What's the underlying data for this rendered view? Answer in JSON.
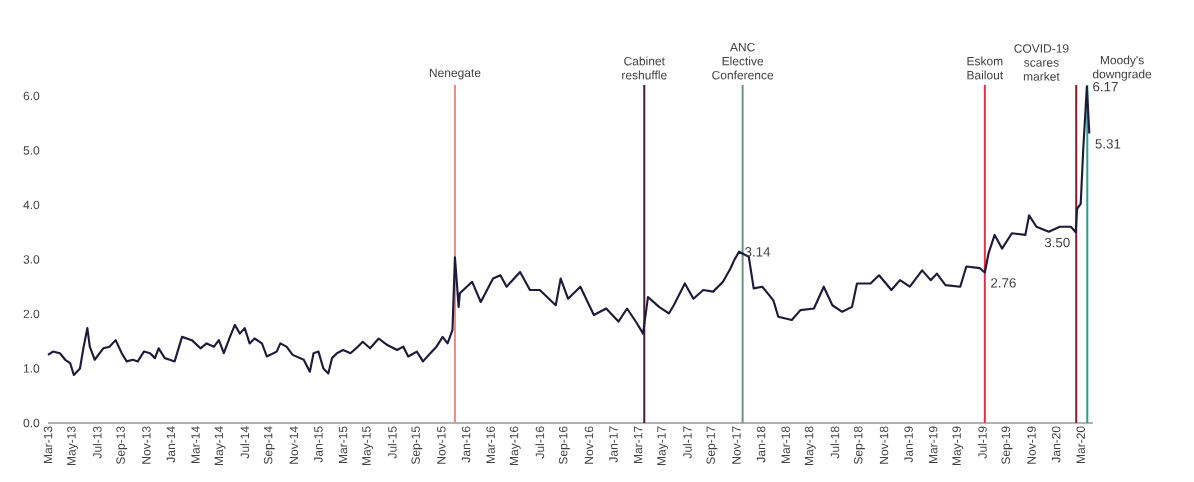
{
  "chart_data": {
    "type": "line",
    "x": [
      "2013-03-01",
      "2013-03-13",
      "2013-03-30",
      "2013-04-13",
      "2013-04-25",
      "2013-05-04",
      "2013-05-19",
      "2013-05-28",
      "2013-06-07",
      "2013-06-13",
      "2013-06-25",
      "2013-07-07",
      "2013-07-16",
      "2013-08-01",
      "2013-08-16",
      "2013-09-01",
      "2013-09-13",
      "2013-09-28",
      "2013-10-10",
      "2013-10-25",
      "2013-11-10",
      "2013-11-22",
      "2013-12-01",
      "2013-12-16",
      "2013-12-28",
      "2014-01-10",
      "2014-01-28",
      "2014-02-22",
      "2014-03-13",
      "2014-03-28",
      "2014-04-16",
      "2014-04-28",
      "2014-05-10",
      "2014-05-25",
      "2014-06-07",
      "2014-06-19",
      "2014-07-01",
      "2014-07-13",
      "2014-07-25",
      "2014-08-13",
      "2014-08-25",
      "2014-09-19",
      "2014-09-28",
      "2014-10-13",
      "2014-10-28",
      "2014-11-25",
      "2014-12-10",
      "2014-12-19",
      "2015-01-01",
      "2015-01-13",
      "2015-01-25",
      "2015-02-04",
      "2015-02-16",
      "2015-03-01",
      "2015-03-19",
      "2015-04-07",
      "2015-04-19",
      "2015-05-07",
      "2015-05-28",
      "2015-06-19",
      "2015-07-13",
      "2015-07-28",
      "2015-08-10",
      "2015-09-01",
      "2015-09-16",
      "2015-10-04",
      "2015-10-19",
      "2015-11-04",
      "2015-11-16",
      "2015-11-28",
      "2015-12-04",
      "2015-12-13",
      "2015-12-16",
      "2016-01-16",
      "2016-02-07",
      "2016-03-07",
      "2016-03-25",
      "2016-04-10",
      "2016-05-13",
      "2016-06-07",
      "2016-07-01",
      "2016-08-10",
      "2016-08-22",
      "2016-09-10",
      "2016-10-10",
      "2016-11-13",
      "2016-12-13",
      "2017-01-13",
      "2017-02-04",
      "2017-02-28",
      "2017-03-13",
      "2017-03-25",
      "2017-04-22",
      "2017-05-16",
      "2017-05-28",
      "2017-06-25",
      "2017-07-16",
      "2017-08-10",
      "2017-09-04",
      "2017-09-28",
      "2017-10-16",
      "2017-10-25",
      "2017-11-07",
      "2017-12-01",
      "2017-12-13",
      "2018-01-04",
      "2018-02-01",
      "2018-02-13",
      "2018-03-16",
      "2018-04-07",
      "2018-05-10",
      "2018-06-04",
      "2018-06-25",
      "2018-07-19",
      "2018-08-13",
      "2018-08-25",
      "2018-09-28",
      "2018-10-19",
      "2018-11-19",
      "2018-12-10",
      "2019-01-04",
      "2019-02-04",
      "2019-02-25",
      "2019-03-10",
      "2019-04-01",
      "2019-05-07",
      "2019-05-22",
      "2019-06-25",
      "2019-07-07",
      "2019-07-16",
      "2019-08-01",
      "2019-08-19",
      "2019-09-13",
      "2019-10-16",
      "2019-10-25",
      "2019-11-13",
      "2019-12-13",
      "2020-01-10",
      "2020-02-07",
      "2020-02-19",
      "2020-02-22",
      "2020-03-01",
      "2020-03-07",
      "2020-03-16",
      "2020-03-19",
      "2020-03-22"
    ],
    "series": [
      {
        "color": "#1e1a3a",
        "values": [
          1.25,
          1.31,
          1.28,
          1.16,
          1.1,
          0.88,
          1.0,
          1.4,
          1.74,
          1.4,
          1.16,
          1.28,
          1.37,
          1.4,
          1.52,
          1.28,
          1.13,
          1.16,
          1.13,
          1.31,
          1.28,
          1.19,
          1.37,
          1.19,
          1.16,
          1.13,
          1.58,
          1.52,
          1.37,
          1.46,
          1.4,
          1.52,
          1.28,
          1.58,
          1.8,
          1.64,
          1.74,
          1.46,
          1.55,
          1.46,
          1.22,
          1.31,
          1.46,
          1.4,
          1.25,
          1.16,
          0.94,
          1.28,
          1.31,
          1.0,
          0.91,
          1.19,
          1.28,
          1.34,
          1.28,
          1.4,
          1.49,
          1.37,
          1.55,
          1.43,
          1.34,
          1.4,
          1.22,
          1.31,
          1.13,
          1.28,
          1.4,
          1.58,
          1.46,
          1.71,
          3.04,
          2.13,
          2.38,
          2.59,
          2.22,
          2.65,
          2.71,
          2.5,
          2.77,
          2.44,
          2.44,
          2.16,
          2.65,
          2.28,
          2.5,
          1.98,
          2.1,
          1.86,
          2.1,
          1.83,
          1.64,
          2.31,
          2.13,
          2.01,
          2.16,
          2.56,
          2.28,
          2.44,
          2.41,
          2.59,
          2.83,
          2.98,
          3.14,
          3.05,
          2.47,
          2.5,
          2.25,
          1.95,
          1.89,
          2.07,
          2.1,
          2.5,
          2.16,
          2.04,
          2.13,
          2.56,
          2.56,
          2.71,
          2.44,
          2.62,
          2.5,
          2.8,
          2.62,
          2.74,
          2.53,
          2.5,
          2.87,
          2.84,
          2.76,
          3.11,
          3.45,
          3.2,
          3.48,
          3.45,
          3.81,
          3.6,
          3.51,
          3.6,
          3.6,
          3.5,
          3.93,
          4.02,
          5.0,
          6.17,
          5.73,
          5.31
        ]
      }
    ],
    "xlim": [
      "2013-03-01",
      "2020-04-01"
    ],
    "xticks": [
      {
        "value": "2013-03",
        "label": "Mar-13"
      },
      {
        "value": "2013-05",
        "label": "May-13"
      },
      {
        "value": "2013-07",
        "label": "Jul-13"
      },
      {
        "value": "2013-09",
        "label": "Sep-13"
      },
      {
        "value": "2013-11",
        "label": "Nov-13"
      },
      {
        "value": "2014-01",
        "label": "Jan-14"
      },
      {
        "value": "2014-03",
        "label": "Mar-14"
      },
      {
        "value": "2014-05",
        "label": "May-14"
      },
      {
        "value": "2014-07",
        "label": "Jul-14"
      },
      {
        "value": "2014-09",
        "label": "Sep-14"
      },
      {
        "value": "2014-11",
        "label": "Nov-14"
      },
      {
        "value": "2015-01",
        "label": "Jan-15"
      },
      {
        "value": "2015-03",
        "label": "Mar-15"
      },
      {
        "value": "2015-05",
        "label": "May-15"
      },
      {
        "value": "2015-07",
        "label": "Jul-15"
      },
      {
        "value": "2015-09",
        "label": "Sep-15"
      },
      {
        "value": "2015-11",
        "label": "Nov-15"
      },
      {
        "value": "2016-01",
        "label": "Jan-16"
      },
      {
        "value": "2016-03",
        "label": "Mar-16"
      },
      {
        "value": "2016-05",
        "label": "May-16"
      },
      {
        "value": "2016-07",
        "label": "Jul-16"
      },
      {
        "value": "2016-09",
        "label": "Sep-16"
      },
      {
        "value": "2016-11",
        "label": "Nov-16"
      },
      {
        "value": "2017-01",
        "label": "Jan-17"
      },
      {
        "value": "2017-03",
        "label": "Mar-17"
      },
      {
        "value": "2017-05",
        "label": "May-17"
      },
      {
        "value": "2017-07",
        "label": "Jul-17"
      },
      {
        "value": "2017-09",
        "label": "Sep-17"
      },
      {
        "value": "2017-11",
        "label": "Nov-17"
      },
      {
        "value": "2018-01",
        "label": "Jan-18"
      },
      {
        "value": "2018-03",
        "label": "Mar-18"
      },
      {
        "value": "2018-05",
        "label": "May-18"
      },
      {
        "value": "2018-07",
        "label": "Jul-18"
      },
      {
        "value": "2018-09",
        "label": "Sep-18"
      },
      {
        "value": "2018-11",
        "label": "Nov-18"
      },
      {
        "value": "2019-01",
        "label": "Jan-19"
      },
      {
        "value": "2019-03",
        "label": "Mar-19"
      },
      {
        "value": "2019-05",
        "label": "May-19"
      },
      {
        "value": "2019-07",
        "label": "Jul-19"
      },
      {
        "value": "2019-09",
        "label": "Sep-19"
      },
      {
        "value": "2019-11",
        "label": "Nov-19"
      },
      {
        "value": "2020-01",
        "label": "Jan-20"
      },
      {
        "value": "2020-03",
        "label": "Mar-20"
      }
    ],
    "ylim": [
      0,
      6.2
    ],
    "yticks": [
      {
        "value": 0,
        "label": "0.0"
      },
      {
        "value": 1,
        "label": "1.0"
      },
      {
        "value": 2,
        "label": "2.0"
      },
      {
        "value": 3,
        "label": "3.0"
      },
      {
        "value": 4,
        "label": "4.0"
      },
      {
        "value": 5,
        "label": "5.0"
      },
      {
        "value": 6,
        "label": "6.0"
      }
    ],
    "ref_lines": [
      {
        "axis": "x",
        "value": "2015-12-04",
        "label": "Nenegate",
        "color": "#f4877a"
      },
      {
        "axis": "x",
        "value": "2017-03-16",
        "label": "Cabinet reshuffle",
        "color": "#4a1a35"
      },
      {
        "axis": "x",
        "value": "2017-11-16",
        "label": "ANC Elective Conference",
        "color": "#6f9288"
      },
      {
        "axis": "x",
        "value": "2019-07-07",
        "label": "Eskom Bailout",
        "color": "#e0304a"
      },
      {
        "axis": "x",
        "value": "2020-02-20",
        "label": "COVID-19 scares market",
        "color": "#8b1a2e"
      },
      {
        "axis": "x",
        "value": "2020-03-17",
        "label": "Moody's downgrade",
        "color": "#1aa58a"
      }
    ],
    "annotations": [
      {
        "text": "6.17",
        "x": "2020-03-16",
        "y": 6.17
      },
      {
        "text": "5.31",
        "x": "2020-03-22",
        "y": 5.31
      },
      {
        "text": "3.14",
        "x": "2017-11-07",
        "y": 3.14
      },
      {
        "text": "2.76",
        "x": "2019-07-07",
        "y": 2.76
      },
      {
        "text": "3.50",
        "x": "2020-02-19",
        "y": 3.5
      }
    ]
  }
}
